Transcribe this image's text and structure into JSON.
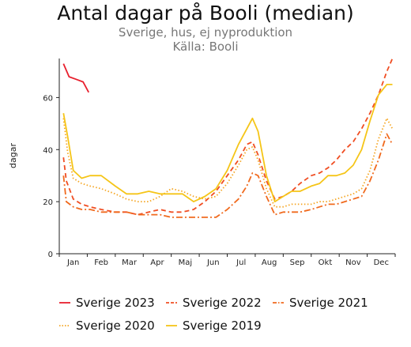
{
  "chart_data": {
    "type": "line",
    "title": "Antal dagar på Booli (median)",
    "subtitle_lines": [
      "Sverige, hus, ej nyproduktion",
      "Källa: Booli"
    ],
    "ylabel": "dagar",
    "xlabel": "",
    "ylim": [
      0,
      75
    ],
    "yticks": [
      0,
      20,
      40,
      60
    ],
    "xlim": [
      0,
      12
    ],
    "months": [
      "Jan",
      "Feb",
      "Mar",
      "Apr",
      "Maj",
      "Jun",
      "Jul",
      "Aug",
      "Sep",
      "Okt",
      "Nov",
      "Dec"
    ],
    "grid": false,
    "legend_position": "bottom",
    "series": [
      {
        "name": "Sverige 2023",
        "color": "#e8202e",
        "dash": "solid",
        "x": [
          0.15,
          0.35,
          0.6,
          0.85,
          1.05
        ],
        "y": [
          73,
          68,
          67,
          66,
          62
        ]
      },
      {
        "name": "Sverige 2022",
        "color": "#f04e23",
        "dash": "dashed",
        "x": [
          0.15,
          0.25,
          0.5,
          0.8,
          1.1,
          1.5,
          2.0,
          2.4,
          2.8,
          3.2,
          3.6,
          4.0,
          4.4,
          4.8,
          5.2,
          5.6,
          6.0,
          6.4,
          6.7,
          6.9,
          7.1,
          7.4,
          7.7,
          8.0,
          8.3,
          8.6,
          9.0,
          9.3,
          9.6,
          9.9,
          10.2,
          10.5,
          10.8,
          11.1,
          11.4,
          11.7,
          11.9
        ],
        "y": [
          37,
          28,
          21,
          19,
          18,
          17,
          16,
          16,
          15,
          16,
          17,
          16,
          16,
          17,
          20,
          24,
          30,
          36,
          42,
          43,
          38,
          28,
          21,
          22,
          24,
          27,
          30,
          31,
          33,
          36,
          40,
          43,
          48,
          54,
          61,
          70,
          75
        ]
      },
      {
        "name": "Sverige 2021",
        "color": "#f06a1e",
        "dash": "dashdot",
        "x": [
          0.15,
          0.25,
          0.5,
          0.8,
          1.1,
          1.5,
          2.0,
          2.4,
          2.8,
          3.2,
          3.6,
          4.0,
          4.4,
          4.8,
          5.2,
          5.6,
          6.0,
          6.4,
          6.7,
          6.9,
          7.1,
          7.4,
          7.7,
          8.0,
          8.3,
          8.6,
          9.0,
          9.3,
          9.6,
          9.9,
          10.2,
          10.5,
          10.8,
          11.1,
          11.4,
          11.7,
          11.9
        ],
        "y": [
          30,
          20,
          18,
          17,
          17,
          16,
          16,
          16,
          15,
          15,
          15,
          14,
          14,
          14,
          14,
          14,
          17,
          21,
          26,
          31,
          30,
          22,
          15,
          16,
          16,
          16,
          17,
          18,
          19,
          19,
          20,
          21,
          22,
          28,
          36,
          46,
          42
        ]
      },
      {
        "name": "Sverige 2020",
        "color": "#f5a623",
        "dash": "dotted",
        "x": [
          0.15,
          0.3,
          0.5,
          0.8,
          1.1,
          1.5,
          2.0,
          2.4,
          2.8,
          3.2,
          3.6,
          4.0,
          4.4,
          4.8,
          5.2,
          5.6,
          6.0,
          6.4,
          6.7,
          6.9,
          7.1,
          7.4,
          7.7,
          8.0,
          8.3,
          8.6,
          9.0,
          9.3,
          9.6,
          9.9,
          10.2,
          10.5,
          10.8,
          11.1,
          11.4,
          11.7,
          11.9
        ],
        "y": [
          52,
          39,
          29,
          27,
          26,
          25,
          23,
          21,
          20,
          20,
          22,
          25,
          24,
          22,
          21,
          22,
          27,
          34,
          40,
          41,
          36,
          25,
          18,
          18,
          19,
          19,
          19,
          20,
          20,
          21,
          22,
          23,
          25,
          32,
          44,
          52,
          48
        ]
      },
      {
        "name": "Sverige 2019",
        "color": "#f5c518",
        "dash": "solid",
        "x": [
          0.15,
          0.3,
          0.5,
          0.8,
          1.1,
          1.5,
          2.0,
          2.4,
          2.8,
          3.2,
          3.6,
          4.0,
          4.4,
          4.8,
          5.2,
          5.6,
          6.0,
          6.4,
          6.7,
          6.9,
          7.1,
          7.4,
          7.7,
          8.0,
          8.3,
          8.6,
          9.0,
          9.3,
          9.6,
          9.9,
          10.2,
          10.5,
          10.8,
          11.1,
          11.4,
          11.7,
          11.9
        ],
        "y": [
          54,
          45,
          32,
          29,
          30,
          30,
          26,
          23,
          23,
          24,
          23,
          23,
          23,
          20,
          22,
          25,
          32,
          42,
          48,
          52,
          47,
          30,
          20,
          22,
          24,
          24,
          26,
          27,
          30,
          30,
          31,
          34,
          40,
          51,
          61,
          65,
          65
        ]
      }
    ]
  }
}
